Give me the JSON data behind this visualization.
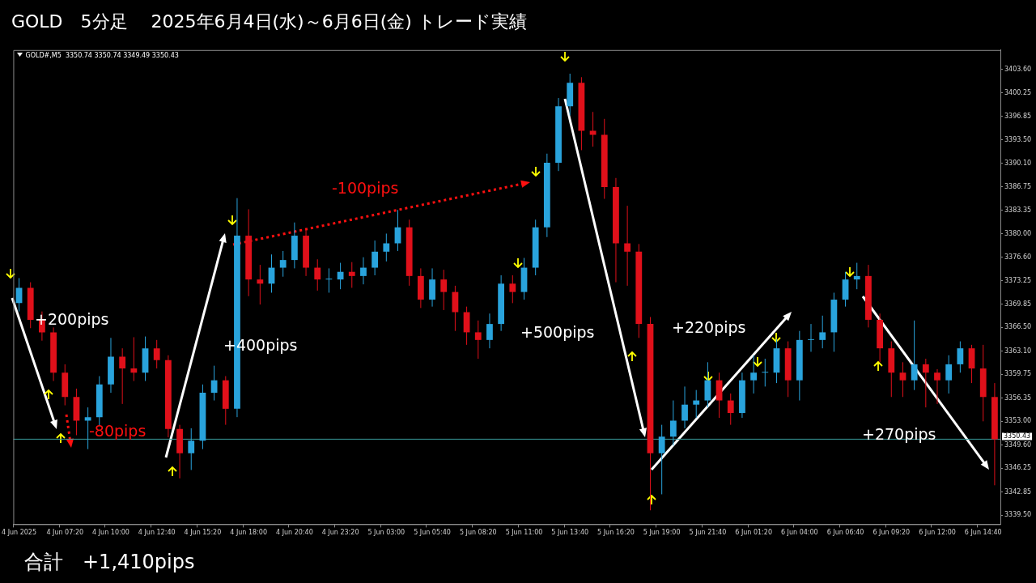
{
  "chart_data": {
    "type": "candlestick",
    "title": "GOLD　5分足　 2025年6月4日(水)～6月6日(金) トレード実績",
    "categories": [
      "4 Jun 2025",
      null,
      null,
      null,
      "4 Jun 07:20",
      null,
      null,
      null,
      "4 Jun 10:00",
      null,
      null,
      null,
      "4 Jun 12:40",
      null,
      null,
      null,
      "4 Jun 15:20",
      null,
      null,
      null,
      "4 Jun 18:00",
      null,
      null,
      null,
      "4 Jun 20:40",
      null,
      null,
      null,
      "4 Jun 23:20",
      null,
      null,
      null,
      "5 Jun 03:00",
      null,
      null,
      null,
      "5 Jun 05:40",
      null,
      null,
      null,
      "5 Jun 08:20",
      null,
      null,
      null,
      "5 Jun 11:00",
      null,
      null,
      null,
      "5 Jun 13:40",
      null,
      null,
      null,
      "5 Jun 16:20",
      null,
      null,
      null,
      "5 Jun 19:00",
      null,
      null,
      null,
      "5 Jun 21:40",
      null,
      null,
      null,
      "6 Jun 01:20",
      null,
      null,
      null,
      "6 Jun 04:00",
      null,
      null,
      null,
      "6 Jun 06:40",
      null,
      null,
      null,
      "6 Jun 09:20",
      null,
      null,
      null,
      "6 Jun 12:00",
      null,
      null,
      null,
      "6 Jun 14:40",
      null
    ],
    "ohlc": [
      [
        3370.0,
        3373.6,
        3368.8,
        3372.2
      ],
      [
        3372.2,
        3373.0,
        3366.4,
        3367.6
      ],
      [
        3367.6,
        3368.8,
        3364.6,
        3365.8
      ],
      [
        3365.8,
        3366.5,
        3358.8,
        3360.0
      ],
      [
        3360.0,
        3361.2,
        3355.3,
        3356.5
      ],
      [
        3356.5,
        3357.7,
        3351.0,
        3353.1
      ],
      [
        3353.1,
        3355.0,
        3349.0,
        3353.6
      ],
      [
        3353.6,
        3359.5,
        3352.4,
        3358.3
      ],
      [
        3358.3,
        3365.0,
        3357.1,
        3362.3
      ],
      [
        3362.3,
        3363.5,
        3355.5,
        3360.6
      ],
      [
        3360.6,
        3365.1,
        3358.8,
        3360.0
      ],
      [
        3360.0,
        3365.2,
        3358.8,
        3363.5
      ],
      [
        3363.5,
        3364.7,
        3360.6,
        3361.8
      ],
      [
        3361.8,
        3362.5,
        3350.7,
        3351.9
      ],
      [
        3351.9,
        3352.5,
        3344.8,
        3348.4
      ],
      [
        3348.4,
        3352.0,
        3346.0,
        3350.2
      ],
      [
        3350.2,
        3358.3,
        3349.0,
        3357.1
      ],
      [
        3357.1,
        3361.0,
        3356.0,
        3358.9
      ],
      [
        3358.9,
        3359.5,
        3352.5,
        3354.8
      ],
      [
        3354.8,
        3385.1,
        3353.6,
        3379.7
      ],
      [
        3379.7,
        3383.5,
        3371.0,
        3373.4
      ],
      [
        3373.4,
        3375.5,
        3369.8,
        3372.8
      ],
      [
        3372.8,
        3377.0,
        3371.5,
        3375.1
      ],
      [
        3375.1,
        3377.5,
        3373.8,
        3376.2
      ],
      [
        3376.2,
        3381.6,
        3375.0,
        3379.7
      ],
      [
        3379.7,
        3380.5,
        3373.9,
        3375.1
      ],
      [
        3375.1,
        3376.3,
        3371.8,
        3373.4
      ],
      [
        3373.4,
        3375.0,
        3371.5,
        3373.4
      ],
      [
        3373.4,
        3375.8,
        3372.0,
        3374.5
      ],
      [
        3374.5,
        3375.9,
        3372.2,
        3373.9
      ],
      [
        3373.9,
        3376.6,
        3372.7,
        3375.1
      ],
      [
        3375.1,
        3379.0,
        3374.0,
        3377.4
      ],
      [
        3377.4,
        3380.0,
        3376.0,
        3378.6
      ],
      [
        3378.6,
        3383.4,
        3377.5,
        3380.9
      ],
      [
        3380.9,
        3382.0,
        3372.5,
        3373.9
      ],
      [
        3373.9,
        3375.0,
        3369.3,
        3370.5
      ],
      [
        3370.5,
        3375.0,
        3369.5,
        3373.4
      ],
      [
        3373.4,
        3374.8,
        3369.0,
        3371.6
      ],
      [
        3371.6,
        3372.5,
        3366.0,
        3368.7
      ],
      [
        3368.7,
        3369.5,
        3364.0,
        3365.8
      ],
      [
        3365.8,
        3367.5,
        3362.0,
        3364.7
      ],
      [
        3364.7,
        3368.5,
        3363.5,
        3367.0
      ],
      [
        3367.0,
        3374.0,
        3366.0,
        3372.8
      ],
      [
        3372.8,
        3374.0,
        3370.0,
        3371.6
      ],
      [
        3371.6,
        3376.5,
        3370.5,
        3375.1
      ],
      [
        3375.1,
        3382.0,
        3374.0,
        3380.9
      ],
      [
        3380.9,
        3391.5,
        3379.5,
        3390.2
      ],
      [
        3390.2,
        3399.5,
        3389.0,
        3398.3
      ],
      [
        3398.3,
        3403.0,
        3397.0,
        3401.7
      ],
      [
        3401.7,
        3402.5,
        3392.0,
        3394.8
      ],
      [
        3394.8,
        3397.5,
        3392.5,
        3394.2
      ],
      [
        3394.2,
        3396.5,
        3385.0,
        3386.7
      ],
      [
        3386.7,
        3388.0,
        3373.0,
        3378.6
      ],
      [
        3378.6,
        3384.0,
        3372.5,
        3377.4
      ],
      [
        3377.4,
        3378.5,
        3365.0,
        3367.0
      ],
      [
        3367.0,
        3368.0,
        3340.2,
        3348.4
      ],
      [
        3348.4,
        3352.5,
        3342.5,
        3350.8
      ],
      [
        3350.8,
        3356.0,
        3349.5,
        3353.1
      ],
      [
        3353.1,
        3358.0,
        3352.0,
        3355.4
      ],
      [
        3355.4,
        3357.5,
        3353.5,
        3356.0
      ],
      [
        3356.0,
        3361.5,
        3355.0,
        3358.9
      ],
      [
        3358.9,
        3360.0,
        3353.5,
        3356.0
      ],
      [
        3356.0,
        3357.0,
        3352.5,
        3354.2
      ],
      [
        3354.2,
        3360.0,
        3353.5,
        3358.9
      ],
      [
        3358.9,
        3362.5,
        3357.0,
        3360.0
      ],
      [
        3360.0,
        3362.0,
        3358.0,
        3360.0
      ],
      [
        3360.0,
        3364.8,
        3358.5,
        3363.5
      ],
      [
        3363.5,
        3364.5,
        3356.5,
        3358.9
      ],
      [
        3358.9,
        3366.0,
        3356.0,
        3364.7
      ],
      [
        3364.7,
        3367.0,
        3363.0,
        3364.7
      ],
      [
        3364.7,
        3368.2,
        3363.5,
        3365.8
      ],
      [
        3365.8,
        3371.5,
        3363.0,
        3370.5
      ],
      [
        3370.5,
        3374.5,
        3369.5,
        3373.4
      ],
      [
        3373.4,
        3375.8,
        3372.0,
        3373.9
      ],
      [
        3373.9,
        3375.5,
        3366.5,
        3367.6
      ],
      [
        3367.6,
        3368.5,
        3361.5,
        3363.5
      ],
      [
        3363.5,
        3364.5,
        3356.5,
        3360.0
      ],
      [
        3360.0,
        3361.5,
        3356.5,
        3358.9
      ],
      [
        3358.9,
        3367.5,
        3357.5,
        3361.2
      ],
      [
        3361.2,
        3362.0,
        3355.0,
        3360.0
      ],
      [
        3360.0,
        3360.5,
        3355.5,
        3358.9
      ],
      [
        3358.9,
        3362.5,
        3357.0,
        3361.2
      ],
      [
        3361.2,
        3364.5,
        3360.0,
        3363.5
      ],
      [
        3363.5,
        3364.0,
        3358.5,
        3360.6
      ],
      [
        3360.6,
        3364.0,
        3353.0,
        3356.5
      ],
      [
        3356.5,
        3358.5,
        3343.8,
        3350.43
      ]
    ],
    "colors": [
      "#29a3dc",
      "#e0101a",
      "#e0101a",
      "#e0101a",
      "#e0101a",
      "#e0101a",
      "#29a3dc",
      "#29a3dc",
      "#29a3dc",
      "#e0101a",
      "#e0101a",
      "#29a3dc",
      "#e0101a",
      "#e0101a",
      "#e0101a",
      "#29a3dc",
      "#29a3dc",
      "#29a3dc",
      "#e0101a",
      "#29a3dc",
      "#e0101a",
      "#e0101a",
      "#29a3dc",
      "#29a3dc",
      "#29a3dc",
      "#e0101a",
      "#e0101a",
      "#29a3dc",
      "#29a3dc",
      "#e0101a",
      "#29a3dc",
      "#29a3dc",
      "#29a3dc",
      "#29a3dc",
      "#e0101a",
      "#e0101a",
      "#29a3dc",
      "#e0101a",
      "#e0101a",
      "#e0101a",
      "#e0101a",
      "#29a3dc",
      "#29a3dc",
      "#e0101a",
      "#29a3dc",
      "#29a3dc",
      "#29a3dc",
      "#29a3dc",
      "#29a3dc",
      "#e0101a",
      "#e0101a",
      "#e0101a",
      "#e0101a",
      "#e0101a",
      "#e0101a",
      "#e0101a",
      "#29a3dc",
      "#29a3dc",
      "#29a3dc",
      "#29a3dc",
      "#29a3dc",
      "#e0101a",
      "#e0101a",
      "#29a3dc",
      "#29a3dc",
      "#29a3dc",
      "#29a3dc",
      "#e0101a",
      "#29a3dc",
      "#29a3dc",
      "#29a3dc",
      "#29a3dc",
      "#29a3dc",
      "#29a3dc",
      "#e0101a",
      "#e0101a",
      "#e0101a",
      "#e0101a",
      "#29a3dc",
      "#e0101a",
      "#e0101a",
      "#29a3dc",
      "#29a3dc",
      "#e0101a",
      "#e0101a",
      "#e0101a"
    ],
    "ylim": [
      3338.2,
      3406.4
    ],
    "yticks": [
      {
        "value": 3339.5,
        "label": "3339.50"
      },
      {
        "value": 3342.85,
        "label": "3342.85"
      },
      {
        "value": 3346.25,
        "label": "3346.25"
      },
      {
        "value": 3349.6,
        "label": "3349.60"
      },
      {
        "value": 3353,
        "label": "3353.00"
      },
      {
        "value": 3356.35,
        "label": "3356.35"
      },
      {
        "value": 3359.75,
        "label": "3359.75"
      },
      {
        "value": 3363.1,
        "label": "3363.10"
      },
      {
        "value": 3366.5,
        "label": "3366.50"
      },
      {
        "value": 3369.85,
        "label": "3369.85"
      },
      {
        "value": 3373.25,
        "label": "3373.25"
      },
      {
        "value": 3376.6,
        "label": "3376.60"
      },
      {
        "value": 3380,
        "label": "3380.00"
      },
      {
        "value": 3383.35,
        "label": "3383.35"
      },
      {
        "value": 3386.75,
        "label": "3386.75"
      },
      {
        "value": 3390.1,
        "label": "3390.10"
      },
      {
        "value": 3393.5,
        "label": "3393.50"
      },
      {
        "value": 3396.85,
        "label": "3396.85"
      },
      {
        "value": 3400.25,
        "label": "3400.25"
      },
      {
        "value": 3403.6,
        "label": "3403.60"
      }
    ],
    "ref_lines": [
      {
        "axis": "y",
        "value": 3350.43,
        "label": "3350.43",
        "color": "#3a9c9c"
      }
    ],
    "annotations": [
      "GOLD#,M5  3350.74 3350.74 3349.49 3350.43",
      "+200pips",
      "-80pips",
      "+400pips",
      "-100pips",
      "+500pips",
      "+220pips",
      "+270pips",
      "合計　+1,410pips"
    ]
  }
}
